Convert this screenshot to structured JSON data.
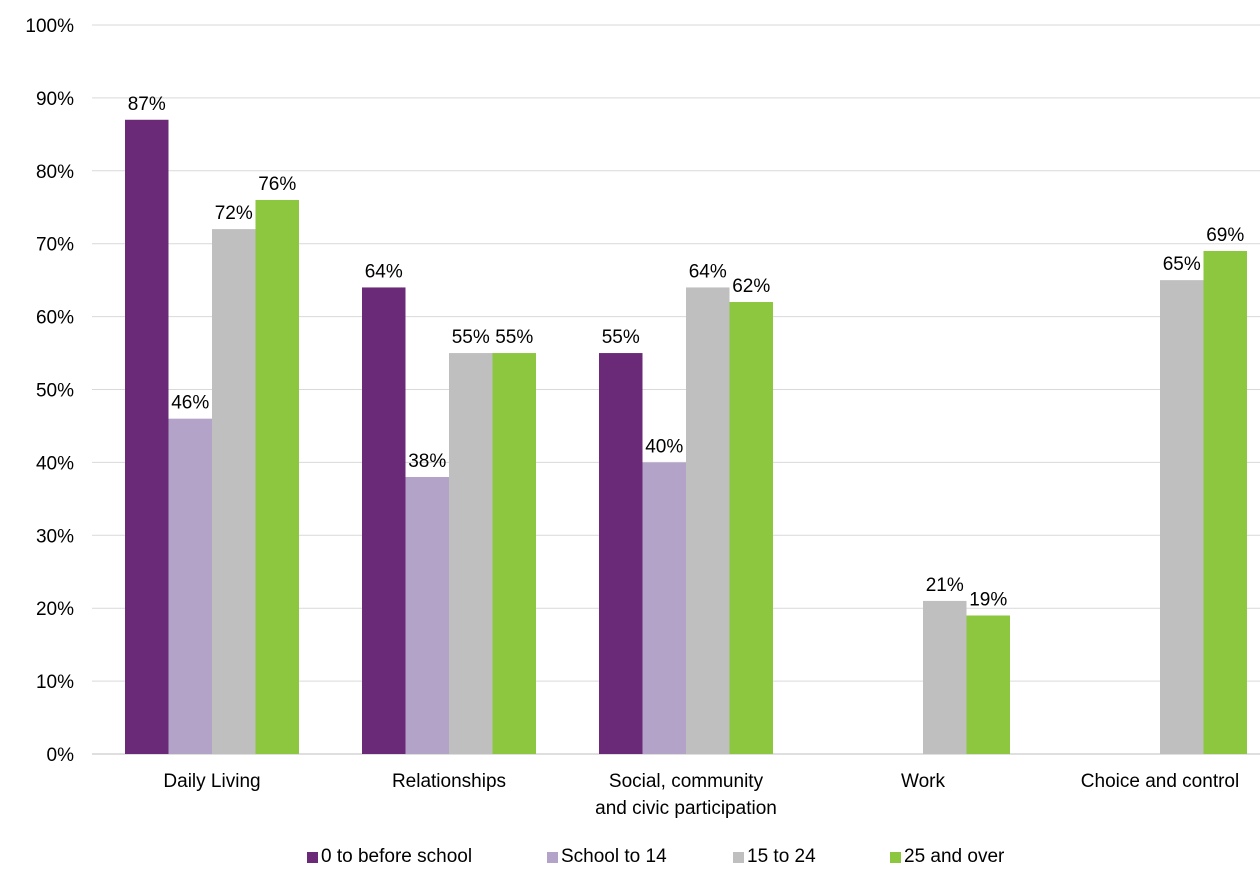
{
  "chart_data": {
    "type": "bar",
    "categories": [
      [
        "Daily Living"
      ],
      [
        "Relationships"
      ],
      [
        "Social, community",
        "and civic participation"
      ],
      [
        "Work"
      ],
      [
        "Choice and control"
      ]
    ],
    "series": [
      {
        "name": "0 to before school",
        "color": "#6b2a77",
        "values": [
          87,
          64,
          55,
          null,
          null
        ],
        "labels": [
          "87%",
          "64%",
          "55%",
          "",
          ""
        ]
      },
      {
        "name": "School to 14",
        "color": "#b3a3c9",
        "values": [
          46,
          38,
          40,
          null,
          null
        ],
        "labels": [
          "46%",
          "38%",
          "40%",
          "",
          ""
        ]
      },
      {
        "name": "15 to 24",
        "color": "#bfbfbf",
        "values": [
          72,
          55,
          64,
          21,
          65
        ],
        "labels": [
          "72%",
          "55%",
          "64%",
          "21%",
          "65%"
        ]
      },
      {
        "name": "25 and over",
        "color": "#8dc63f",
        "values": [
          76,
          55,
          62,
          19,
          69
        ],
        "labels": [
          "76%",
          "55%",
          "62%",
          "19%",
          "69%"
        ]
      }
    ],
    "yticks": [
      "0%",
      "10%",
      "20%",
      "30%",
      "40%",
      "50%",
      "60%",
      "70%",
      "80%",
      "90%",
      "100%"
    ],
    "ylim": [
      0,
      100
    ],
    "grid": true,
    "legend": "bottom"
  }
}
